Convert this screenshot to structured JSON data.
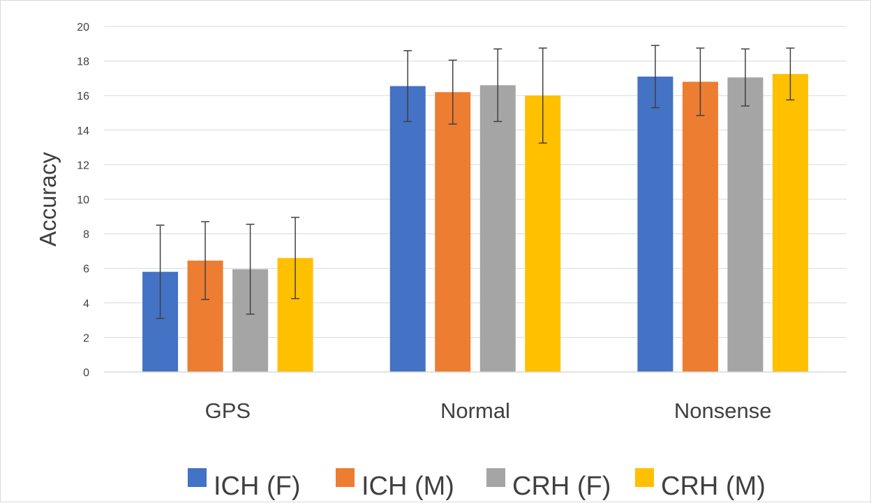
{
  "chart_data": {
    "type": "bar",
    "title": "",
    "xlabel": "",
    "ylabel": "Accuracy",
    "ylim": [
      0,
      20
    ],
    "yticks": [
      0,
      2,
      4,
      6,
      8,
      10,
      12,
      14,
      16,
      18,
      20
    ],
    "grid": true,
    "legend_position": "bottom",
    "categories": [
      "GPS",
      "Normal",
      "Nonsense"
    ],
    "series": [
      {
        "name": "ICH (F)",
        "color": "#4472C4",
        "values": [
          5.8,
          16.55,
          17.1
        ],
        "error": [
          2.7,
          2.05,
          1.8
        ]
      },
      {
        "name": "ICH (M)",
        "color": "#ED7D31",
        "values": [
          6.45,
          16.2,
          16.8
        ],
        "error": [
          2.25,
          1.85,
          1.95
        ]
      },
      {
        "name": "CRH (F)",
        "color": "#A5A5A5",
        "values": [
          5.95,
          16.6,
          17.05
        ],
        "error": [
          2.6,
          2.1,
          1.65
        ]
      },
      {
        "name": "CRH (M)",
        "color": "#FFC000",
        "values": [
          6.6,
          16.0,
          17.25
        ],
        "error": [
          2.35,
          2.75,
          1.5
        ]
      }
    ]
  }
}
